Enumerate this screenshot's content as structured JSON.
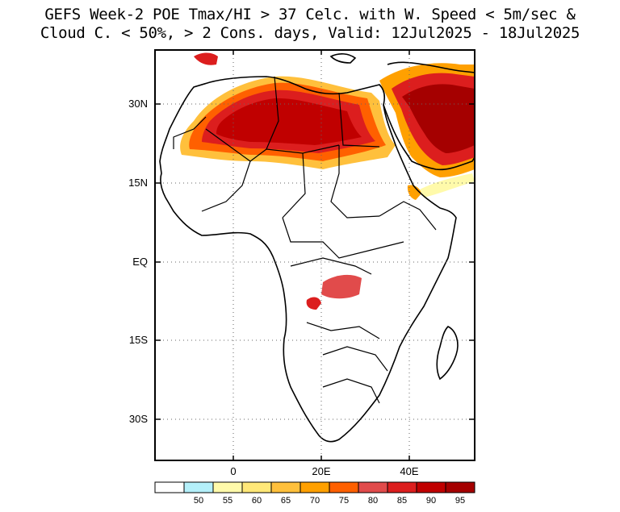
{
  "title": {
    "line1": "GEFS Week-2 POE Tmax/HI > 37 Celc. with W. Speed < 5m/sec &",
    "line2": "Cloud C. < 50%, > 2 Cons. days, Valid: 12Jul2025 - 18Jul2025"
  },
  "axes": {
    "lat_labels": [
      "30N",
      "15N",
      "EQ",
      "15S",
      "30S"
    ],
    "lon_labels": [
      "0",
      "20E",
      "40E"
    ]
  },
  "colorbar": {
    "labels": [
      "50",
      "55",
      "60",
      "65",
      "70",
      "75",
      "80",
      "85",
      "90",
      "95"
    ],
    "colors": [
      "#ffffff",
      "#b4f0fa",
      "#fffaaa",
      "#ffe878",
      "#ffc03c",
      "#ffa000",
      "#ff6000",
      "#e14b4b",
      "#dc1e1e",
      "#c00000",
      "#a50000"
    ]
  }
}
